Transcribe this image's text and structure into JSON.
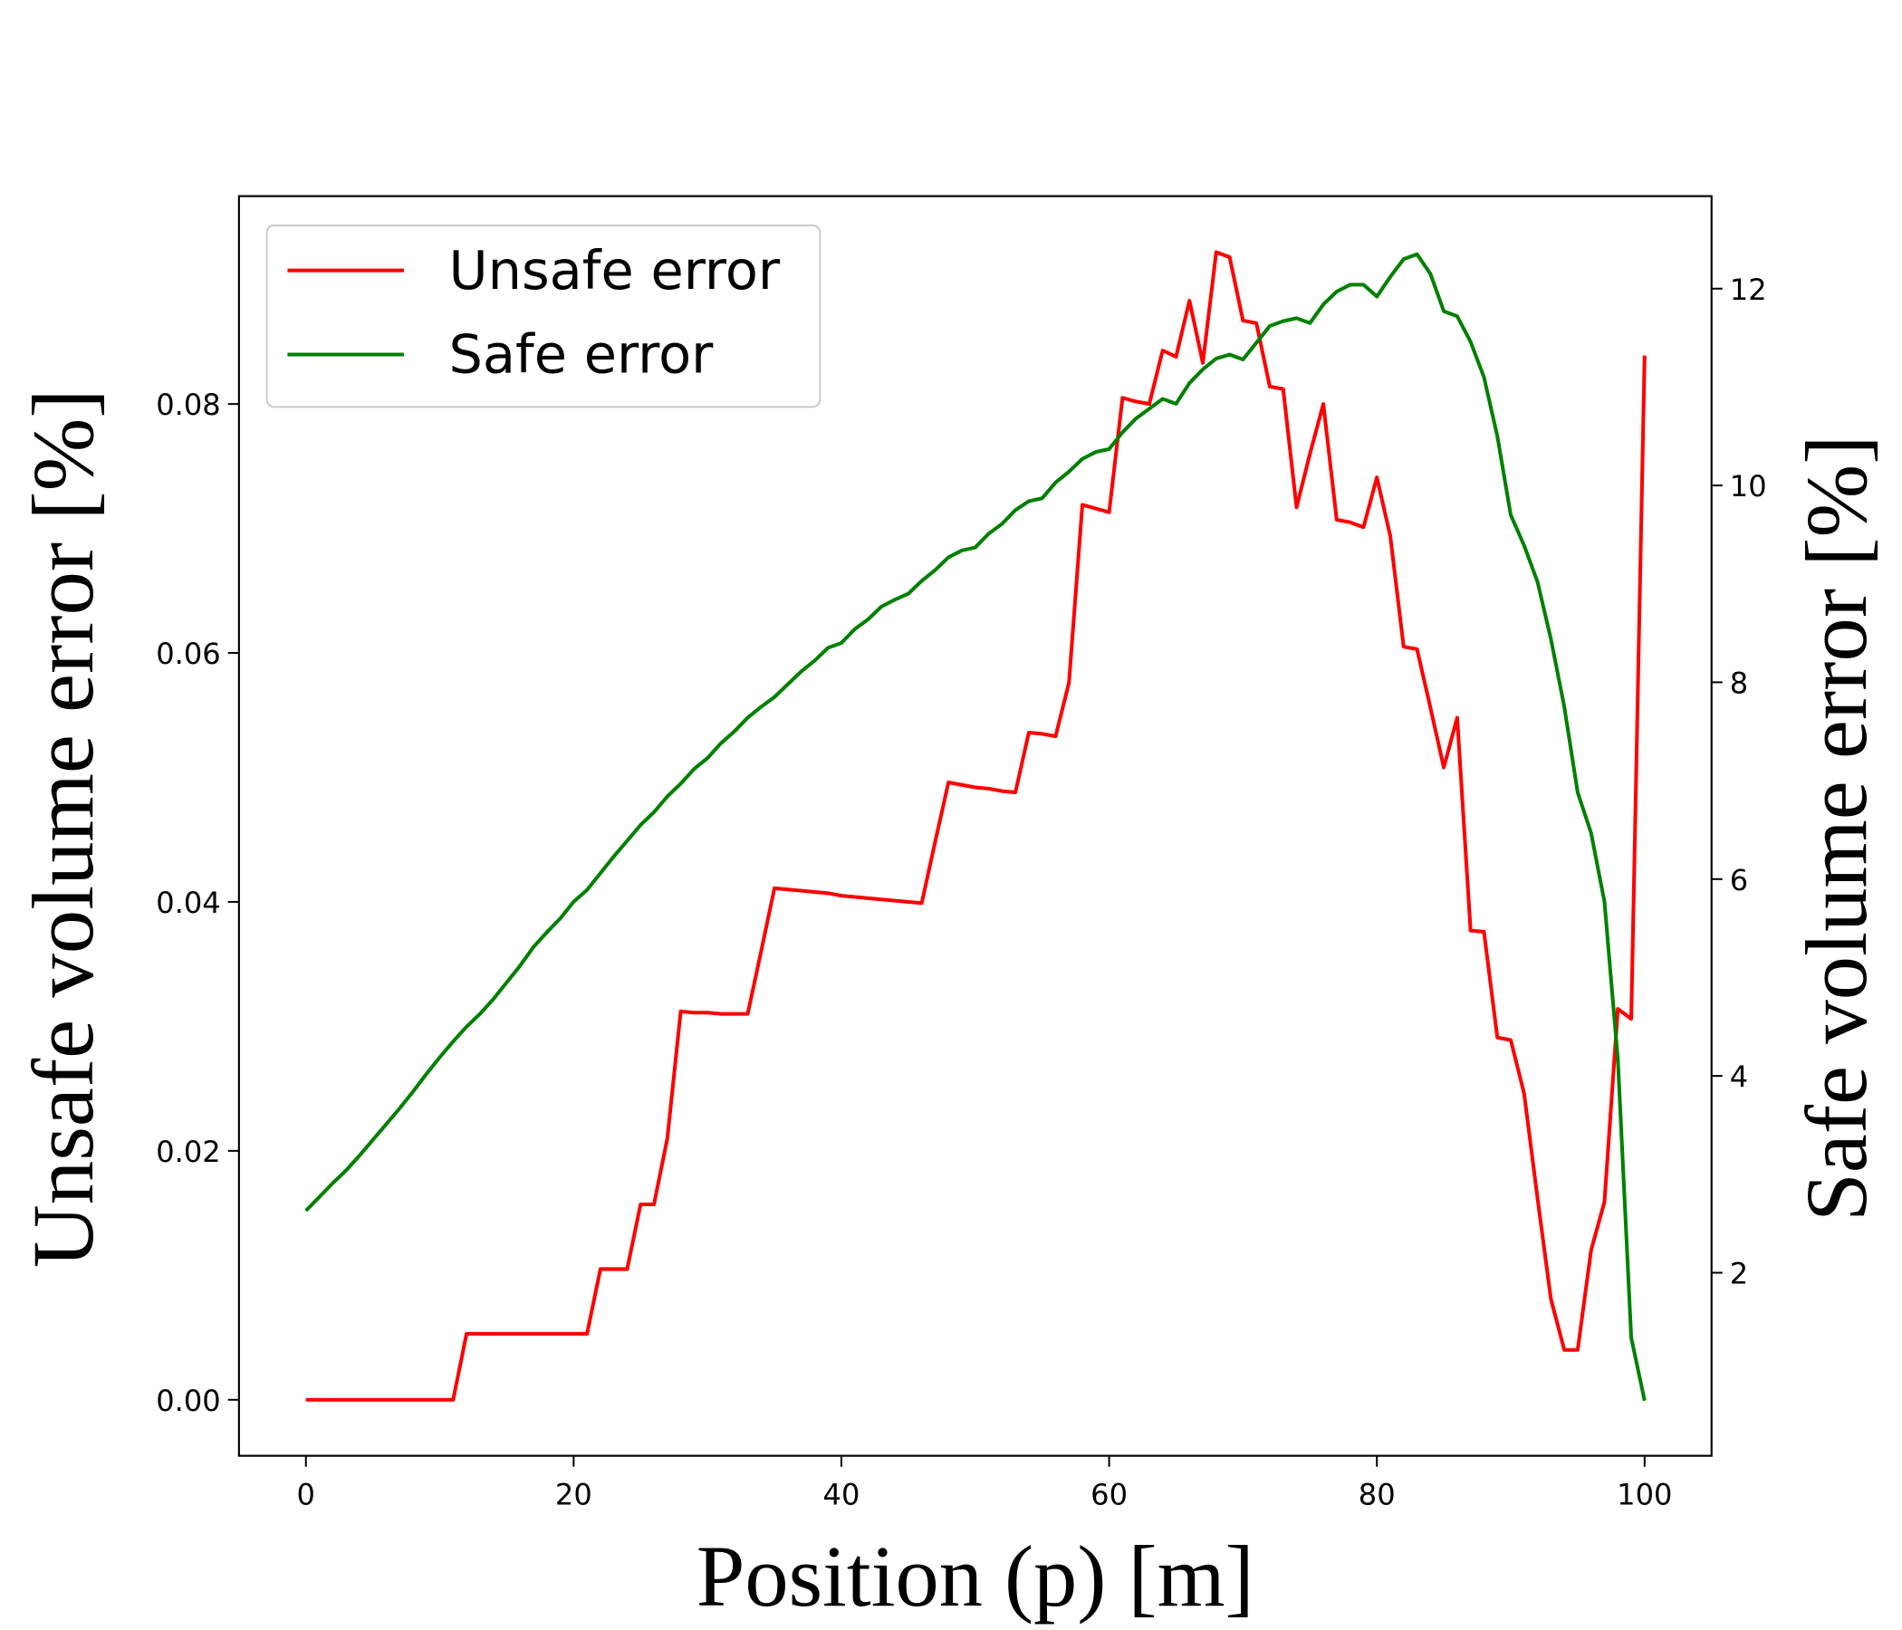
{
  "chart_data": {
    "type": "line",
    "xlabel": "Position (p) [m]",
    "ylabel": "Unsafe volume error [%]",
    "y2label": "Safe volume error [%]",
    "legend": "upper left",
    "x": [
      0,
      1,
      2,
      3,
      4,
      5,
      6,
      7,
      8,
      9,
      10,
      11,
      12,
      13,
      14,
      15,
      16,
      17,
      18,
      19,
      20,
      21,
      22,
      23,
      24,
      25,
      26,
      27,
      28,
      29,
      30,
      31,
      32,
      33,
      34,
      35,
      36,
      37,
      38,
      39,
      40,
      41,
      42,
      43,
      44,
      45,
      46,
      47,
      48,
      49,
      50,
      51,
      52,
      53,
      54,
      55,
      56,
      57,
      58,
      59,
      60,
      61,
      62,
      63,
      64,
      65,
      66,
      67,
      68,
      69,
      70,
      71,
      72,
      73,
      74,
      75,
      76,
      77,
      78,
      79,
      80,
      81,
      82,
      83,
      84,
      85,
      86,
      87,
      88,
      89,
      90,
      91,
      92,
      93,
      94,
      95,
      96,
      97,
      98,
      99,
      100
    ],
    "xlim": [
      -5,
      105
    ],
    "xticks": [
      0,
      20,
      40,
      60,
      80,
      100
    ],
    "ylim": [
      -0.0045,
      0.0967
    ],
    "yticks": [
      {
        "value": 0,
        "label": "0.00"
      },
      0.02,
      0.04,
      0.06,
      0.08
    ],
    "y2lim": [
      0.14,
      12.94
    ],
    "y2ticks": [
      2,
      4,
      6,
      8,
      10,
      12
    ],
    "series": [
      {
        "name": "Unsafe error",
        "color": "#ff0000",
        "axis": "y",
        "values": [
          0,
          0,
          0,
          0,
          0,
          0,
          0,
          0,
          0,
          0,
          0,
          0,
          0.0053,
          0.0053,
          0.0053,
          0.0053,
          0.0053,
          0.0053,
          0.0053,
          0.0053,
          0.0053,
          0.0053,
          0.0105,
          0.0105,
          0.0105,
          0.0157,
          0.0157,
          0.021,
          0.0312,
          0.0311,
          0.0311,
          0.031,
          0.031,
          0.031,
          0.036,
          0.0411,
          0.041,
          0.0409,
          0.0408,
          0.0407,
          0.0405,
          0.0404,
          0.0403,
          0.0402,
          0.0401,
          0.04,
          0.0399,
          0.0448,
          0.0496,
          0.0494,
          0.0492,
          0.0491,
          0.0489,
          0.0488,
          0.0536,
          0.0535,
          0.0533,
          0.0576,
          0.0719,
          0.0716,
          0.0713,
          0.0805,
          0.0802,
          0.08,
          0.0843,
          0.0838,
          0.0883,
          0.0833,
          0.0922,
          0.0918,
          0.0867,
          0.0865,
          0.0814,
          0.0812,
          0.0717,
          0.076,
          0.08,
          0.0707,
          0.0705,
          0.0701,
          0.0741,
          0.0694,
          0.0605,
          0.0603,
          0.0556,
          0.0508,
          0.0548,
          0.0377,
          0.0376,
          0.0291,
          0.0289,
          0.0246,
          0.0162,
          0.0081,
          0.004,
          0.004,
          0.012,
          0.0159,
          0.0314,
          0.0306,
          0.0839
        ]
      },
      {
        "name": "Safe error",
        "color": "#008000",
        "axis": "y2",
        "values": [
          2.63,
          2.77,
          2.91,
          3.04,
          3.19,
          3.35,
          3.51,
          3.67,
          3.84,
          4.02,
          4.19,
          4.35,
          4.5,
          4.63,
          4.78,
          4.95,
          5.12,
          5.31,
          5.46,
          5.6,
          5.77,
          5.89,
          6.06,
          6.23,
          6.39,
          6.55,
          6.68,
          6.84,
          6.97,
          7.12,
          7.23,
          7.38,
          7.5,
          7.64,
          7.75,
          7.85,
          7.98,
          8.11,
          8.22,
          8.35,
          8.4,
          8.54,
          8.64,
          8.77,
          8.84,
          8.9,
          9.03,
          9.14,
          9.27,
          9.34,
          9.37,
          9.51,
          9.61,
          9.75,
          9.84,
          9.87,
          10.03,
          10.14,
          10.27,
          10.34,
          10.37,
          10.54,
          10.68,
          10.78,
          10.88,
          10.83,
          11.04,
          11.18,
          11.29,
          11.33,
          11.28,
          11.45,
          11.62,
          11.67,
          11.7,
          11.65,
          11.84,
          11.97,
          12.04,
          12.04,
          11.92,
          12.12,
          12.3,
          12.35,
          12.15,
          11.77,
          11.72,
          11.46,
          11.1,
          10.5,
          9.7,
          9.39,
          9.02,
          8.44,
          7.75,
          6.88,
          6.47,
          5.77,
          4.17,
          1.34,
          0.7
        ]
      }
    ]
  }
}
